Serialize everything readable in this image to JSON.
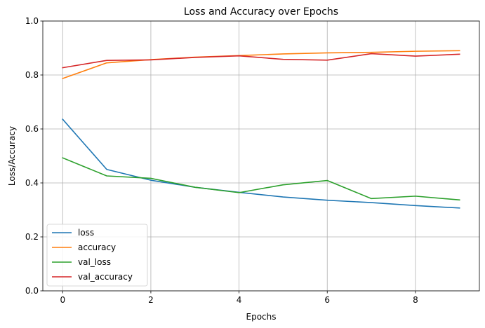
{
  "chart_data": {
    "type": "line",
    "title": "Loss and Accuracy over Epochs",
    "xlabel": "Epochs",
    "ylabel": "Loss/Accuracy",
    "xlim": [
      -0.45,
      9.45
    ],
    "ylim": [
      0,
      1.0
    ],
    "x_ticks": [
      0,
      2,
      4,
      6,
      8
    ],
    "y_ticks": [
      0.0,
      0.2,
      0.4,
      0.6,
      0.8,
      1.0
    ],
    "x_tick_labels": [
      "0",
      "2",
      "4",
      "6",
      "8"
    ],
    "y_tick_labels": [
      "0.0",
      "0.2",
      "0.4",
      "0.6",
      "0.8",
      "1.0"
    ],
    "grid": true,
    "legend_position": "lower-left",
    "x": [
      0,
      1,
      2,
      3,
      4,
      5,
      6,
      7,
      8,
      9
    ],
    "series": [
      {
        "name": "loss",
        "color": "#1f77b4",
        "values": [
          0.636,
          0.45,
          0.41,
          0.384,
          0.365,
          0.348,
          0.336,
          0.327,
          0.316,
          0.307
        ]
      },
      {
        "name": "accuracy",
        "color": "#ff7f0e",
        "values": [
          0.787,
          0.845,
          0.857,
          0.866,
          0.872,
          0.878,
          0.882,
          0.884,
          0.888,
          0.89
        ]
      },
      {
        "name": "val_loss",
        "color": "#2ca02c",
        "values": [
          0.493,
          0.426,
          0.417,
          0.384,
          0.364,
          0.393,
          0.409,
          0.342,
          0.351,
          0.337
        ]
      },
      {
        "name": "val_accuracy",
        "color": "#d62728",
        "values": [
          0.827,
          0.854,
          0.856,
          0.865,
          0.871,
          0.858,
          0.855,
          0.879,
          0.87,
          0.877
        ]
      }
    ]
  }
}
